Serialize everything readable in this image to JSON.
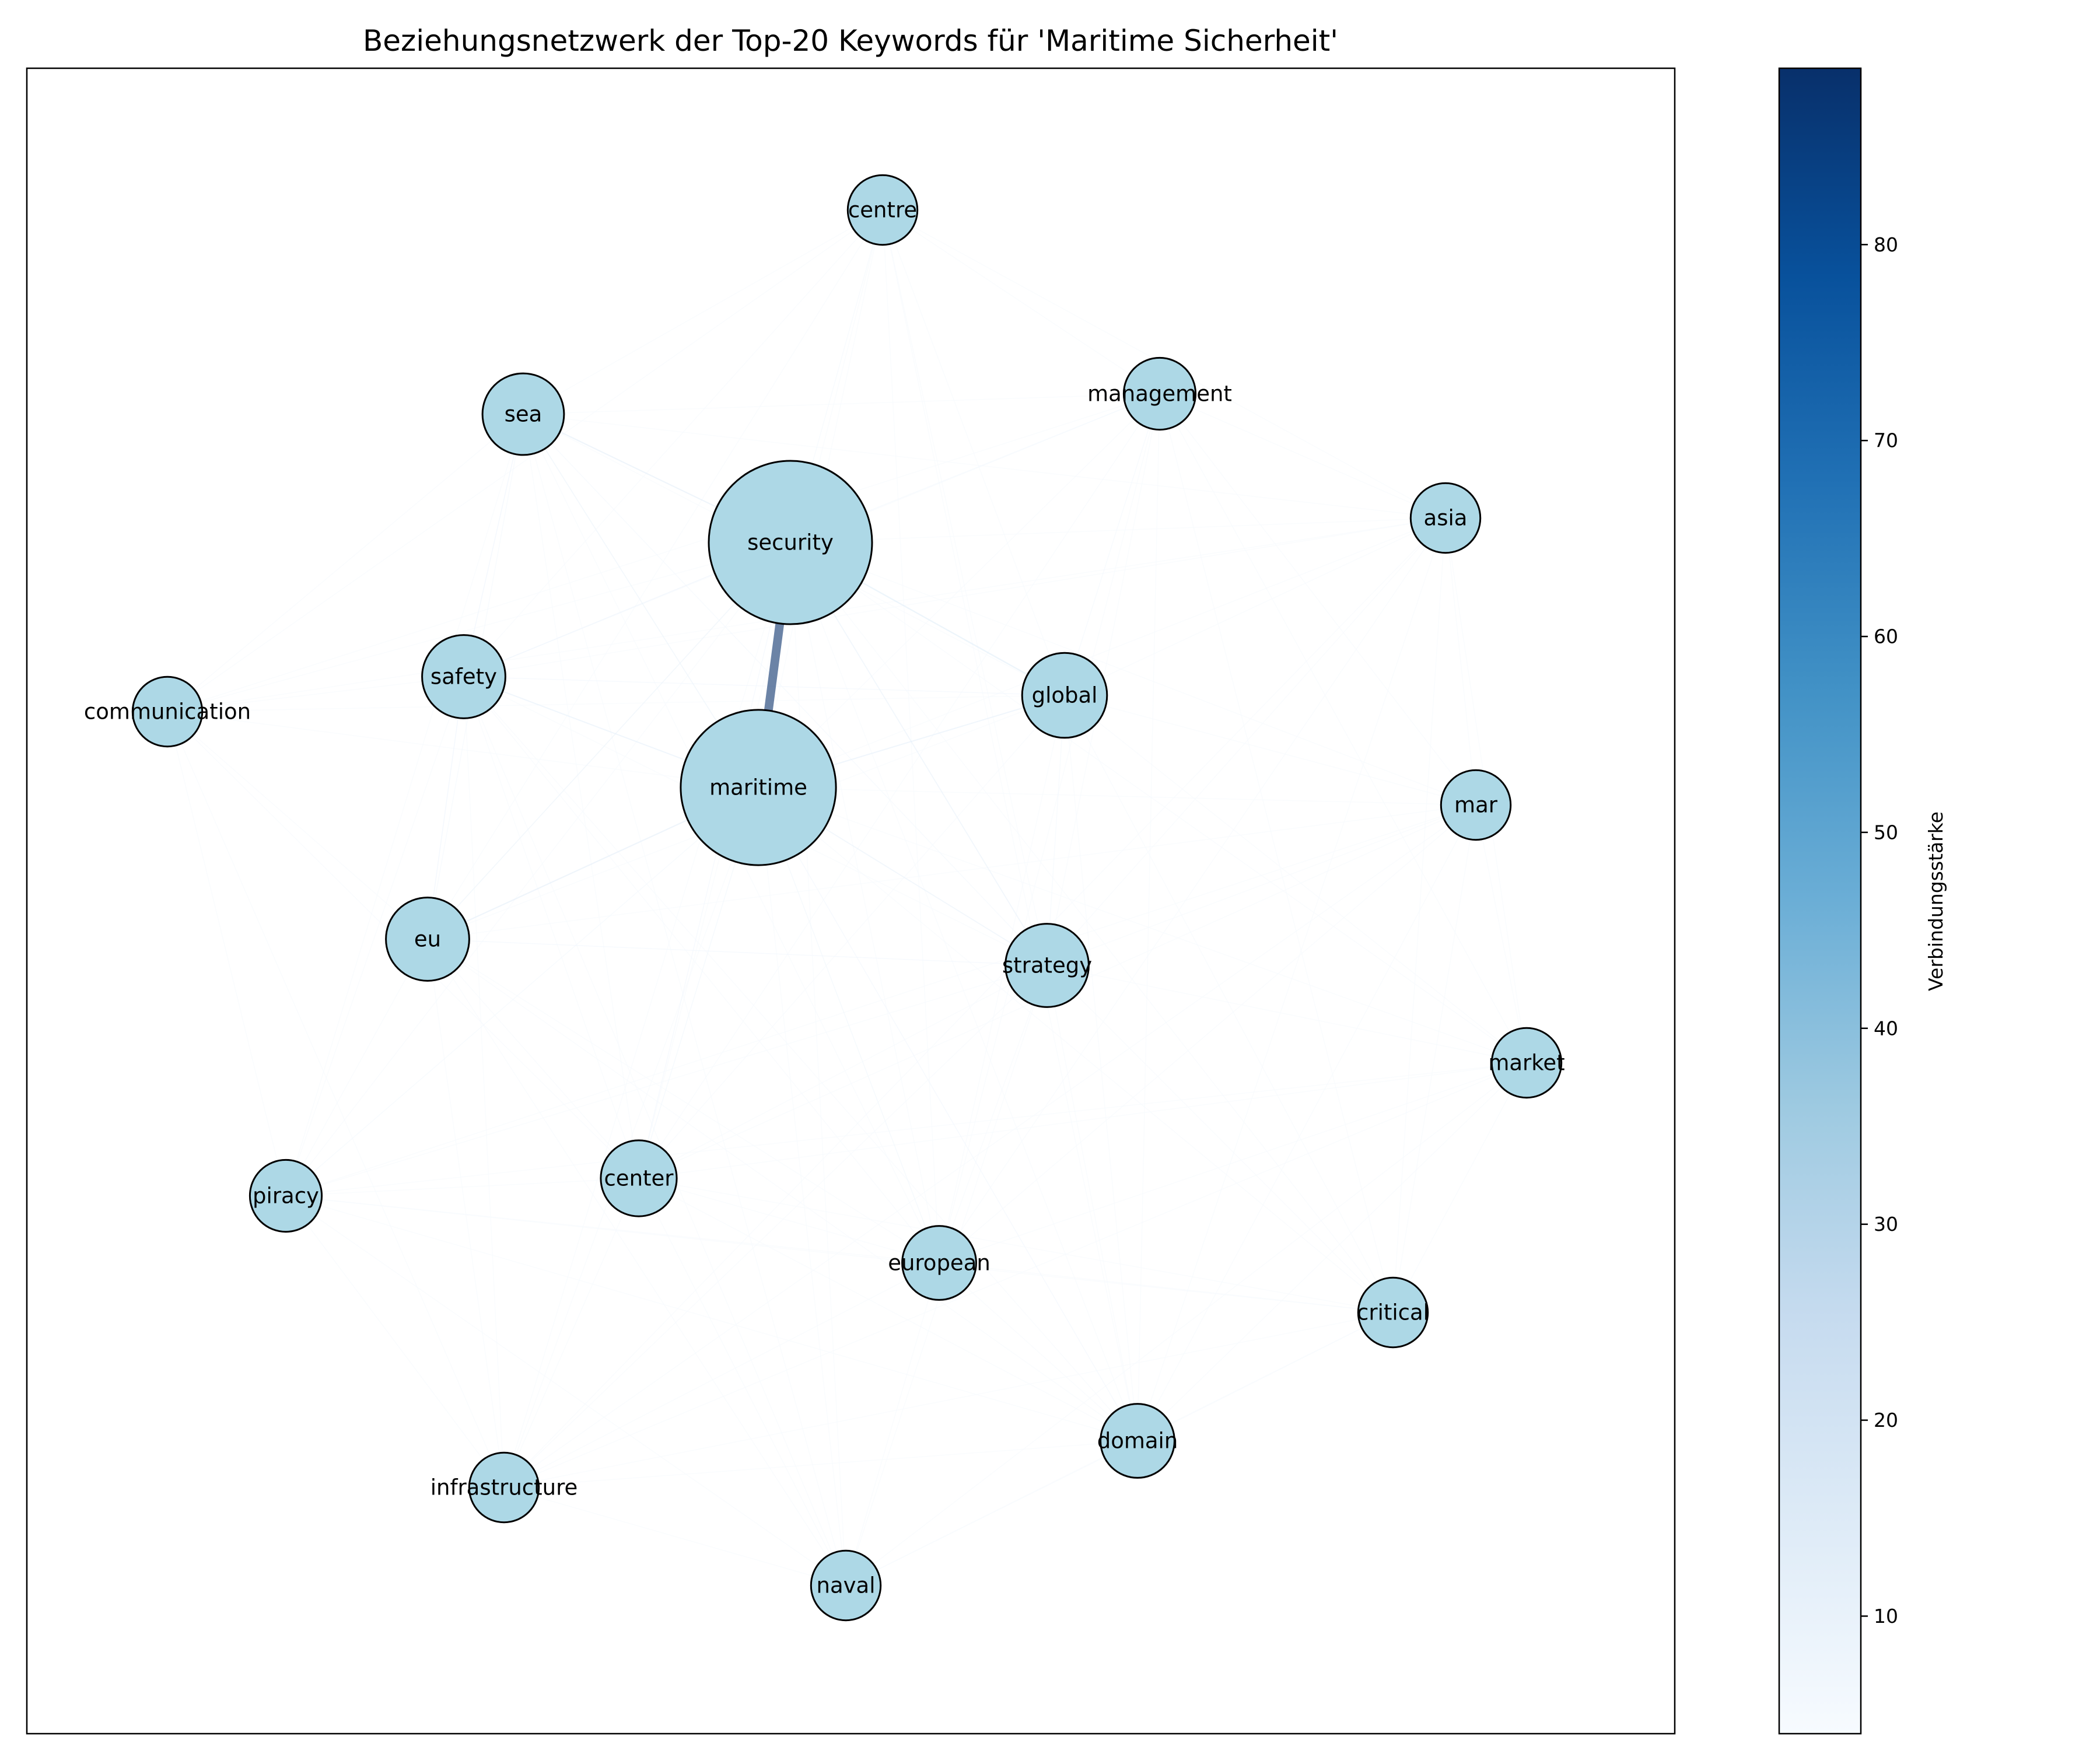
{
  "title": "Beziehungsnetzwerk der Top-20 Keywords für 'Maritime Sicherheit'",
  "colorbar": {
    "label": "Verbindungsstärke",
    "min": 4,
    "max": 89,
    "ticks": [
      "10",
      "20",
      "30",
      "40",
      "50",
      "60",
      "70",
      "80"
    ],
    "colormap": "Blues"
  },
  "node_color": "#add8e6",
  "node_edge_color": "#000000",
  "nodes": [
    {
      "id": "security",
      "label": "security",
      "size": 100
    },
    {
      "id": "maritime",
      "label": "maritime",
      "size": 88
    },
    {
      "id": "global",
      "label": "global",
      "size": 16
    },
    {
      "id": "strategy",
      "label": "strategy",
      "size": 15
    },
    {
      "id": "eu",
      "label": "eu",
      "size": 15
    },
    {
      "id": "safety",
      "label": "safety",
      "size": 15
    },
    {
      "id": "sea",
      "label": "sea",
      "size": 14
    },
    {
      "id": "center",
      "label": "center",
      "size": 11
    },
    {
      "id": "european",
      "label": "european",
      "size": 10
    },
    {
      "id": "domain",
      "label": "domain",
      "size": 10
    },
    {
      "id": "piracy",
      "label": "piracy",
      "size": 9
    },
    {
      "id": "management",
      "label": "management",
      "size": 9
    },
    {
      "id": "centre",
      "label": "centre",
      "size": 8
    },
    {
      "id": "naval",
      "label": "naval",
      "size": 8
    },
    {
      "id": "critical",
      "label": "critical",
      "size": 8
    },
    {
      "id": "infrastructure",
      "label": "infrastructure",
      "size": 8
    },
    {
      "id": "mar",
      "label": "mar",
      "size": 8
    },
    {
      "id": "market",
      "label": "market",
      "size": 8
    },
    {
      "id": "asia",
      "label": "asia",
      "size": 8
    },
    {
      "id": "communication",
      "label": "communication",
      "size": 8
    }
  ],
  "edges": [
    {
      "source": "security",
      "target": "maritime",
      "weight": 89
    },
    {
      "source": "security",
      "target": "global",
      "weight": 14
    },
    {
      "source": "security",
      "target": "sea",
      "weight": 13
    },
    {
      "source": "maritime",
      "target": "eu",
      "weight": 13
    },
    {
      "source": "maritime",
      "target": "safety",
      "weight": 12
    },
    {
      "source": "maritime",
      "target": "global",
      "weight": 12
    },
    {
      "source": "security",
      "target": "strategy",
      "weight": 11
    },
    {
      "source": "maritime",
      "target": "strategy",
      "weight": 11
    },
    {
      "source": "security",
      "target": "eu",
      "weight": 10
    },
    {
      "source": "maritime",
      "target": "sea",
      "weight": 10
    },
    {
      "source": "security",
      "target": "safety",
      "weight": 9
    },
    {
      "source": "sea",
      "target": "safety",
      "weight": 9
    },
    {
      "source": "safety",
      "target": "eu",
      "weight": 9
    },
    {
      "source": "maritime",
      "target": "center",
      "weight": 8
    },
    {
      "source": "maritime",
      "target": "european",
      "weight": 8
    },
    {
      "source": "security",
      "target": "center",
      "weight": 7
    },
    {
      "source": "eu",
      "target": "strategy",
      "weight": 7
    },
    {
      "source": "safety",
      "target": "global",
      "weight": 7
    },
    {
      "source": "maritime",
      "target": "domain",
      "weight": 7
    },
    {
      "source": "security",
      "target": "management",
      "weight": 6
    },
    {
      "source": "security",
      "target": "centre",
      "weight": 6
    },
    {
      "source": "maritime",
      "target": "piracy",
      "weight": 6
    },
    {
      "source": "global",
      "target": "strategy",
      "weight": 6
    },
    {
      "source": "sea",
      "target": "eu",
      "weight": 6
    },
    {
      "source": "sea",
      "target": "strategy",
      "weight": 6
    },
    {
      "source": "management",
      "target": "global",
      "weight": 6
    },
    {
      "source": "security",
      "target": "asia",
      "weight": 5
    },
    {
      "source": "security",
      "target": "mar",
      "weight": 5
    },
    {
      "source": "security",
      "target": "european",
      "weight": 5
    },
    {
      "source": "security",
      "target": "domain",
      "weight": 5
    },
    {
      "source": "security",
      "target": "communication",
      "weight": 5
    },
    {
      "source": "security",
      "target": "piracy",
      "weight": 5
    },
    {
      "source": "security",
      "target": "naval",
      "weight": 5
    },
    {
      "source": "security",
      "target": "critical",
      "weight": 5
    },
    {
      "source": "security",
      "target": "market",
      "weight": 5
    },
    {
      "source": "security",
      "target": "infrastructure",
      "weight": 5
    },
    {
      "source": "maritime",
      "target": "management",
      "weight": 5
    },
    {
      "source": "maritime",
      "target": "centre",
      "weight": 5
    },
    {
      "source": "maritime",
      "target": "asia",
      "weight": 5
    },
    {
      "source": "maritime",
      "target": "mar",
      "weight": 5
    },
    {
      "source": "maritime",
      "target": "market",
      "weight": 5
    },
    {
      "source": "maritime",
      "target": "critical",
      "weight": 5
    },
    {
      "source": "maritime",
      "target": "naval",
      "weight": 5
    },
    {
      "source": "maritime",
      "target": "infrastructure",
      "weight": 5
    },
    {
      "source": "maritime",
      "target": "communication",
      "weight": 5
    },
    {
      "source": "global",
      "target": "asia",
      "weight": 5
    },
    {
      "source": "global",
      "target": "mar",
      "weight": 5
    },
    {
      "source": "global",
      "target": "market",
      "weight": 5
    },
    {
      "source": "global",
      "target": "european",
      "weight": 5
    },
    {
      "source": "global",
      "target": "domain",
      "weight": 5
    },
    {
      "source": "global",
      "target": "center",
      "weight": 5
    },
    {
      "source": "global",
      "target": "eu",
      "weight": 5
    },
    {
      "source": "global",
      "target": "centre",
      "weight": 5
    },
    {
      "source": "global",
      "target": "sea",
      "weight": 5
    },
    {
      "source": "global",
      "target": "communication",
      "weight": 5
    },
    {
      "source": "global",
      "target": "critical",
      "weight": 5
    },
    {
      "source": "strategy",
      "target": "european",
      "weight": 5
    },
    {
      "source": "strategy",
      "target": "domain",
      "weight": 5
    },
    {
      "source": "strategy",
      "target": "center",
      "weight": 5
    },
    {
      "source": "strategy",
      "target": "piracy",
      "weight": 5
    },
    {
      "source": "strategy",
      "target": "market",
      "weight": 5
    },
    {
      "source": "strategy",
      "target": "mar",
      "weight": 5
    },
    {
      "source": "strategy",
      "target": "critical",
      "weight": 5
    },
    {
      "source": "strategy",
      "target": "naval",
      "weight": 5
    },
    {
      "source": "strategy",
      "target": "infrastructure",
      "weight": 5
    },
    {
      "source": "strategy",
      "target": "management",
      "weight": 5
    },
    {
      "source": "strategy",
      "target": "asia",
      "weight": 5
    },
    {
      "source": "strategy",
      "target": "safety",
      "weight": 5
    },
    {
      "source": "eu",
      "target": "center",
      "weight": 5
    },
    {
      "source": "eu",
      "target": "european",
      "weight": 5
    },
    {
      "source": "eu",
      "target": "piracy",
      "weight": 5
    },
    {
      "source": "eu",
      "target": "domain",
      "weight": 5
    },
    {
      "source": "eu",
      "target": "communication",
      "weight": 5
    },
    {
      "source": "eu",
      "target": "infrastructure",
      "weight": 5
    },
    {
      "source": "eu",
      "target": "naval",
      "weight": 5
    },
    {
      "source": "eu",
      "target": "mar",
      "weight": 5
    },
    {
      "source": "safety",
      "target": "communication",
      "weight": 5
    },
    {
      "source": "safety",
      "target": "piracy",
      "weight": 5
    },
    {
      "source": "safety",
      "target": "center",
      "weight": 5
    },
    {
      "source": "safety",
      "target": "european",
      "weight": 5
    },
    {
      "source": "safety",
      "target": "management",
      "weight": 5
    },
    {
      "source": "safety",
      "target": "asia",
      "weight": 5
    },
    {
      "source": "safety",
      "target": "domain",
      "weight": 5
    },
    {
      "source": "sea",
      "target": "centre",
      "weight": 5
    },
    {
      "source": "sea",
      "target": "communication",
      "weight": 5
    },
    {
      "source": "sea",
      "target": "management",
      "weight": 5
    },
    {
      "source": "sea",
      "target": "piracy",
      "weight": 5
    },
    {
      "source": "sea",
      "target": "center",
      "weight": 5
    },
    {
      "source": "sea",
      "target": "european",
      "weight": 5
    },
    {
      "source": "sea",
      "target": "asia",
      "weight": 5
    },
    {
      "source": "center",
      "target": "european",
      "weight": 5
    },
    {
      "source": "center",
      "target": "piracy",
      "weight": 5
    },
    {
      "source": "center",
      "target": "domain",
      "weight": 5
    },
    {
      "source": "center",
      "target": "infrastructure",
      "weight": 5
    },
    {
      "source": "center",
      "target": "naval",
      "weight": 5
    },
    {
      "source": "center",
      "target": "market",
      "weight": 5
    },
    {
      "source": "center",
      "target": "critical",
      "weight": 5
    },
    {
      "source": "center",
      "target": "mar",
      "weight": 5
    },
    {
      "source": "european",
      "target": "domain",
      "weight": 5
    },
    {
      "source": "european",
      "target": "naval",
      "weight": 5
    },
    {
      "source": "european",
      "target": "critical",
      "weight": 5
    },
    {
      "source": "european",
      "target": "market",
      "weight": 5
    },
    {
      "source": "european",
      "target": "piracy",
      "weight": 5
    },
    {
      "source": "european",
      "target": "infrastructure",
      "weight": 5
    },
    {
      "source": "european",
      "target": "management",
      "weight": 5
    },
    {
      "source": "european",
      "target": "asia",
      "weight": 5
    },
    {
      "source": "domain",
      "target": "critical",
      "weight": 5
    },
    {
      "source": "domain",
      "target": "market",
      "weight": 5
    },
    {
      "source": "domain",
      "target": "naval",
      "weight": 5
    },
    {
      "source": "domain",
      "target": "infrastructure",
      "weight": 5
    },
    {
      "source": "domain",
      "target": "piracy",
      "weight": 5
    },
    {
      "source": "domain",
      "target": "mar",
      "weight": 5
    },
    {
      "source": "domain",
      "target": "management",
      "weight": 5
    },
    {
      "source": "domain",
      "target": "asia",
      "weight": 5
    },
    {
      "source": "piracy",
      "target": "infrastructure",
      "weight": 5
    },
    {
      "source": "piracy",
      "target": "naval",
      "weight": 5
    },
    {
      "source": "piracy",
      "target": "communication",
      "weight": 5
    },
    {
      "source": "piracy",
      "target": "critical",
      "weight": 5
    },
    {
      "source": "management",
      "target": "asia",
      "weight": 5
    },
    {
      "source": "management",
      "target": "centre",
      "weight": 5
    },
    {
      "source": "management",
      "target": "mar",
      "weight": 5
    },
    {
      "source": "management",
      "target": "market",
      "weight": 5
    },
    {
      "source": "management",
      "target": "critical",
      "weight": 5
    },
    {
      "source": "management",
      "target": "center",
      "weight": 5
    },
    {
      "source": "management",
      "target": "communication",
      "weight": 5
    },
    {
      "source": "centre",
      "target": "asia",
      "weight": 5
    },
    {
      "source": "centre",
      "target": "communication",
      "weight": 5
    },
    {
      "source": "centre",
      "target": "center",
      "weight": 5
    },
    {
      "source": "centre",
      "target": "european",
      "weight": 5
    },
    {
      "source": "centre",
      "target": "safety",
      "weight": 5
    },
    {
      "source": "centre",
      "target": "eu",
      "weight": 5
    },
    {
      "source": "centre",
      "target": "strategy",
      "weight": 5
    },
    {
      "source": "centre",
      "target": "domain",
      "weight": 5
    },
    {
      "source": "naval",
      "target": "infrastructure",
      "weight": 5
    },
    {
      "source": "naval",
      "target": "critical",
      "weight": 5
    },
    {
      "source": "naval",
      "target": "market",
      "weight": 5
    },
    {
      "source": "critical",
      "target": "market",
      "weight": 5
    },
    {
      "source": "critical",
      "target": "mar",
      "weight": 5
    },
    {
      "source": "critical",
      "target": "infrastructure",
      "weight": 5
    },
    {
      "source": "critical",
      "target": "asia",
      "weight": 5
    },
    {
      "source": "mar",
      "target": "market",
      "weight": 5
    },
    {
      "source": "mar",
      "target": "asia",
      "weight": 5
    },
    {
      "source": "mar",
      "target": "european",
      "weight": 5
    },
    {
      "source": "mar",
      "target": "piracy",
      "weight": 5
    },
    {
      "source": "mar",
      "target": "infrastructure",
      "weight": 5
    },
    {
      "source": "market",
      "target": "asia",
      "weight": 5
    },
    {
      "source": "market",
      "target": "piracy",
      "weight": 5
    },
    {
      "source": "market",
      "target": "infrastructure",
      "weight": 5
    },
    {
      "source": "asia",
      "target": "communication",
      "weight": 5
    },
    {
      "source": "asia",
      "target": "infrastructure",
      "weight": 5
    },
    {
      "source": "communication",
      "target": "infrastructure",
      "weight": 5
    },
    {
      "source": "communication",
      "target": "center",
      "weight": 5
    },
    {
      "source": "infrastructure",
      "target": "safety",
      "weight": 5
    },
    {
      "source": "naval",
      "target": "sea",
      "weight": 5
    },
    {
      "source": "naval",
      "target": "safety",
      "weight": 5
    }
  ]
}
